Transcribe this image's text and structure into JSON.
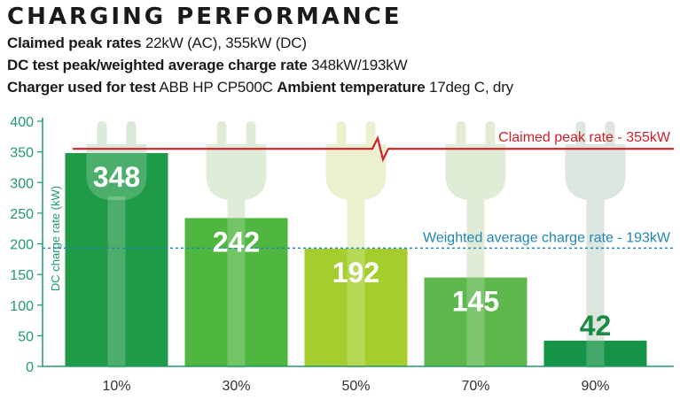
{
  "header": {
    "title": "CHARGING PERFORMANCE",
    "line1": {
      "label": "Claimed peak rates",
      "value": "22kW (AC), 355kW (DC)"
    },
    "line2": {
      "label": "DC test peak/weighted average charge rate",
      "value": "348kW/193kW"
    },
    "line3": {
      "label_a": "Charger used for test",
      "value_a": "ABB HP CP500C",
      "label_b": "Ambient temperature",
      "value_b": "17deg C, dry"
    }
  },
  "chart_data": {
    "type": "bar",
    "categories": [
      "10%",
      "30%",
      "50%",
      "70%",
      "90%"
    ],
    "values": [
      348,
      242,
      192,
      145,
      42
    ],
    "value_labels": [
      "348",
      "242",
      "192",
      "145",
      "42"
    ],
    "ylabel": "DC charge rate (kW)",
    "ylim": [
      0,
      400
    ],
    "yticks": [
      0,
      50,
      100,
      150,
      200,
      250,
      300,
      350,
      400
    ],
    "ytick_labels": [
      "0",
      "50",
      "100",
      "150",
      "200",
      "250",
      "300",
      "350",
      "400"
    ],
    "grid": false,
    "reference_lines": [
      {
        "label": "Claimed peak rate - 355kW",
        "value": 355,
        "color": "#d0202a",
        "style": "solid"
      },
      {
        "label": "Weighted average charge rate - 193kW",
        "value": 193,
        "color": "#1f86b8",
        "style": "dashed"
      }
    ],
    "colors": {
      "bars": [
        "#1f9a46",
        "#4fb63f",
        "#a6cd2e",
        "#5db74c",
        "#159447"
      ],
      "plugs": [
        "#d9ead9",
        "#dfecd8",
        "#ebf1cf",
        "#e0ecd5",
        "#dde6de"
      ],
      "axis": "#1f9a6a",
      "label_dark": "#1a8a44",
      "label_light": "#ffffff"
    }
  }
}
